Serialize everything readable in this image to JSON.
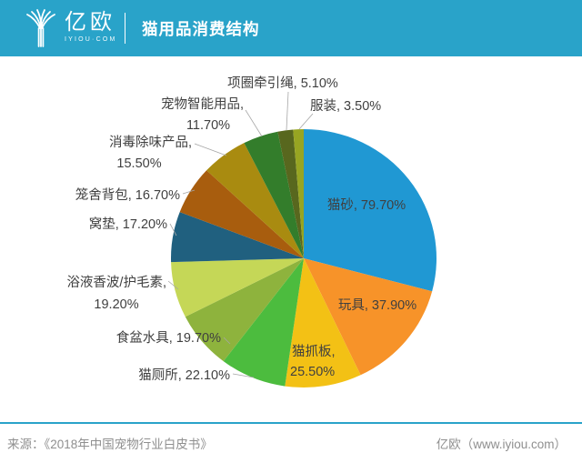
{
  "header": {
    "logo_text": "亿欧",
    "logo_subtext": "IYIOU·COM",
    "title": "猫用品消费结构"
  },
  "theme": {
    "header_color": "#29A3C9",
    "rule_color": "#29A3C9",
    "label_color": "#404040",
    "leader_color": "#A6A6A6",
    "footer_text_color": "#8F8F8F"
  },
  "chart_data": {
    "type": "pie",
    "title": "猫用品消费结构",
    "value_unit": "%",
    "start_angle_deg": 0,
    "direction": "clockwise",
    "slices": [
      {
        "name": "猫砂",
        "value": 79.7,
        "pct": "79.70%",
        "color": "#2098D3"
      },
      {
        "name": "玩具",
        "value": 37.9,
        "pct": "37.90%",
        "color": "#F79329"
      },
      {
        "name": "猫抓板",
        "value": 25.5,
        "pct": "25.50%",
        "color": "#F3C115"
      },
      {
        "name": "猫厕所",
        "value": 22.1,
        "pct": "22.10%",
        "color": "#4CBC3E"
      },
      {
        "name": "食盆水具",
        "value": 19.7,
        "pct": "19.70%",
        "color": "#8EB33D"
      },
      {
        "name": "浴液香波/护毛素",
        "value": 19.2,
        "pct": "19.20%",
        "color": "#C5D757"
      },
      {
        "name": "窝垫",
        "value": 17.2,
        "pct": "17.20%",
        "color": "#20607F"
      },
      {
        "name": "笼舍背包",
        "value": 16.7,
        "pct": "16.70%",
        "color": "#A85D0E"
      },
      {
        "name": "消毒除味产品",
        "value": 15.5,
        "pct": "15.50%",
        "color": "#A98B10"
      },
      {
        "name": "宠物智能用品",
        "value": 11.7,
        "pct": "11.70%",
        "color": "#337D2B"
      },
      {
        "name": "项圈牵引绳",
        "value": 5.1,
        "pct": "5.10%",
        "color": "#58671E"
      },
      {
        "name": "服装",
        "value": 3.5,
        "pct": "3.50%",
        "color": "#97A522"
      }
    ]
  },
  "footer": {
    "source": "来源：《2018年中国宠物行业白皮书》",
    "credit": "亿欧（www.iyiou.com）"
  }
}
